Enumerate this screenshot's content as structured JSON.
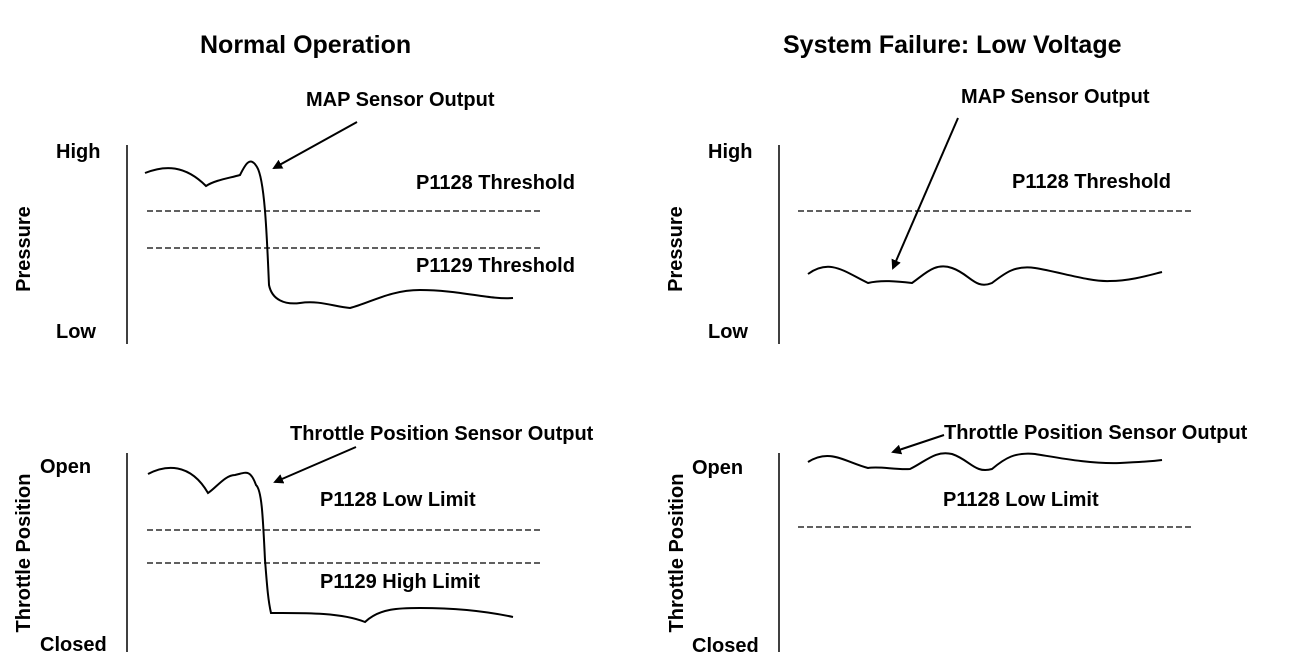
{
  "panels": {
    "normal": {
      "title": "Normal Operation",
      "pressure": {
        "ylabel": "Pressure",
        "high_label": "High",
        "low_label": "Low",
        "callout": "MAP Sensor Output",
        "threshold_1": "P1128 Threshold",
        "threshold_2": "P1129 Threshold"
      },
      "throttle": {
        "ylabel": "Throttle Position",
        "open_label": "Open",
        "closed_label": "Closed",
        "callout": "Throttle Position Sensor Output",
        "limit_1": "P1128 Low Limit",
        "limit_2": "P1129 High Limit"
      }
    },
    "failure": {
      "title": "System Failure: Low Voltage",
      "pressure": {
        "ylabel": "Pressure",
        "high_label": "High",
        "low_label": "Low",
        "callout": "MAP Sensor Output",
        "threshold_1": "P1128 Threshold"
      },
      "throttle": {
        "ylabel": "Throttle Position",
        "open_label": "Open",
        "closed_label": "Closed",
        "callout": "Throttle Position Sensor Output",
        "limit_1": "P1128 Low Limit"
      }
    }
  },
  "colors": {
    "ink": "#000000",
    "background": "#ffffff"
  }
}
